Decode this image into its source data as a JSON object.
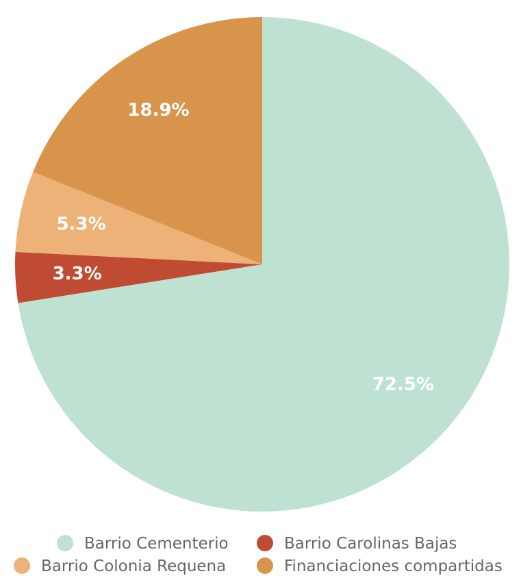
{
  "chart_data": {
    "type": "pie",
    "start_angle": "top",
    "direction": "clockwise",
    "slices": [
      {
        "name": "Barrio Cementerio",
        "value": 72.5,
        "label": "72.5%",
        "color": "#bfe1d1"
      },
      {
        "name": "Barrio Carolinas Bajas",
        "value": 3.3,
        "label": "3.3%",
        "color": "#c04b33"
      },
      {
        "name": "Barrio Colonia Requena",
        "value": 5.3,
        "label": "5.3%",
        "color": "#edb277"
      },
      {
        "name": "Financiaciones compartidas",
        "value": 18.9,
        "label": "18.9%",
        "color": "#d9944b"
      }
    ],
    "legend_position": "bottom"
  }
}
